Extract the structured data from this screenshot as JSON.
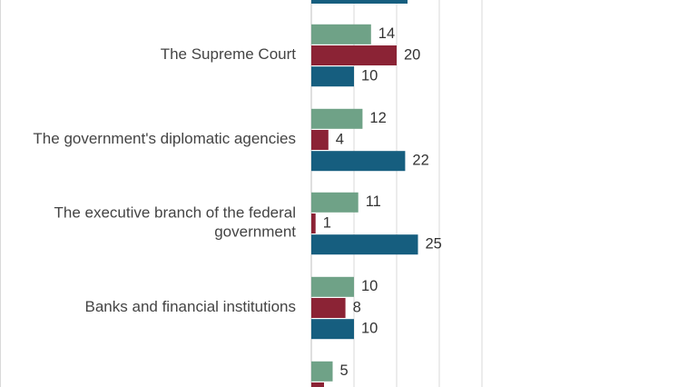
{
  "chart_data": {
    "type": "bar",
    "orientation": "horizontal",
    "grid": true,
    "xlim": [
      0,
      40
    ],
    "categories": [
      [
        "",
        ""
      ],
      [
        "The Supreme Court"
      ],
      [
        "The government's diplomatic agencies"
      ],
      [
        "The executive branch of the federal",
        "government"
      ],
      [
        "Banks and financial institutions"
      ],
      [
        "",
        ""
      ]
    ],
    "series": [
      {
        "color": "#6fa287",
        "values": [
          null,
          14,
          12,
          11,
          10,
          5
        ]
      },
      {
        "color": "#8b2335",
        "values": [
          null,
          20,
          4,
          1,
          8,
          null
        ]
      },
      {
        "color": "#165e7f",
        "values": [
          null,
          10,
          22,
          25,
          10,
          null
        ]
      }
    ]
  }
}
